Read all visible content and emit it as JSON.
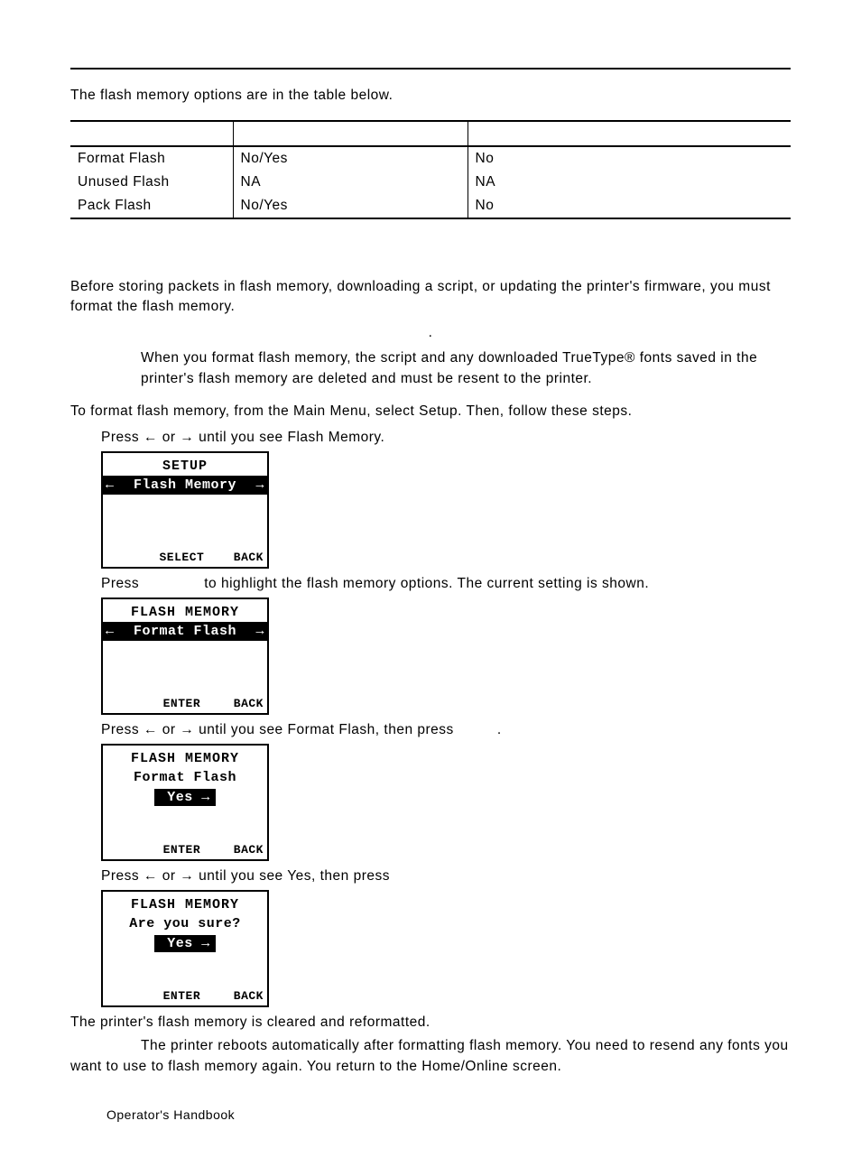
{
  "intro": "The flash memory options are in the table below.",
  "table": {
    "rows": [
      {
        "c1": "Format Flash",
        "c2": "No/Yes",
        "c3": "No"
      },
      {
        "c1": "Unused Flash",
        "c2": "NA",
        "c3": "NA"
      },
      {
        "c1": "Pack Flash",
        "c2": "No/Yes",
        "c3": "No"
      }
    ]
  },
  "para1": "Before storing packets in flash memory, downloading a script, or updating the printer's firmware, you must format the flash memory.",
  "dot": ".",
  "note1": "When you format flash memory, the script and any downloaded TrueType® fonts saved in the printer's flash memory are deleted and must be resent to the printer.",
  "para2": "To format flash memory, from the Main Menu, select Setup.  Then, follow these steps.",
  "step1_a": "Press ",
  "step1_b": " or ",
  "step1_c": " until you see Flash Memory.",
  "arrow_left": "←",
  "arrow_right": "→",
  "screen1": {
    "title": "SETUP",
    "row": "Flash Memory",
    "sk_left": "SELECT",
    "sk_right": "BACK"
  },
  "step2_a": "Press ",
  "step2_b": " to highlight the flash memory options. The current setting is shown.",
  "screen2": {
    "title": "FLASH MEMORY",
    "row": "Format Flash",
    "sk_left": "ENTER",
    "sk_right": "BACK"
  },
  "step3_a": "Press ",
  "step3_b": " or ",
  "step3_c": " until you see Format Flash, then press ",
  "step3_d": ".",
  "screen3": {
    "title": "FLASH MEMORY",
    "subtitle": "Format Flash",
    "pill": "Yes",
    "sk_left": "ENTER",
    "sk_right": "BACK"
  },
  "step4_a": "Press ",
  "step4_b": " or ",
  "step4_c": " until you see Yes, then press",
  "screen4": {
    "title": "FLASH MEMORY",
    "subtitle": "Are you sure?",
    "pill": "Yes",
    "sk_left": "ENTER",
    "sk_right": "BACK"
  },
  "closing1": "The printer's flash memory is cleared and reformatted.",
  "closing2": "The printer reboots automatically after formatting flash memory.  You need to resend any fonts you want to use to flash memory again.  You return to the Home/Online screen.",
  "handbook": "Operator's Handbook"
}
